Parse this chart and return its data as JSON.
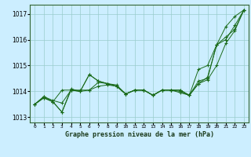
{
  "title": "Graphe pression niveau de la mer (hPa)",
  "background_color": "#cceeff",
  "grid_color": "#99cccc",
  "line_color": "#1a6b1a",
  "xlim": [
    -0.5,
    23.5
  ],
  "ylim": [
    1012.8,
    1017.35
  ],
  "yticks": [
    1013,
    1014,
    1015,
    1016,
    1017
  ],
  "xtick_labels": [
    "0",
    "1",
    "2",
    "3",
    "4",
    "5",
    "6",
    "7",
    "8",
    "9",
    "10",
    "11",
    "12",
    "13",
    "14",
    "15",
    "16",
    "17",
    "18",
    "19",
    "20",
    "21",
    "22",
    "23"
  ],
  "series": [
    {
      "x": [
        0,
        1,
        2,
        3,
        4,
        5,
        6,
        7,
        8,
        9,
        10,
        11,
        12,
        13,
        14,
        15,
        16,
        17,
        18,
        19,
        20,
        21,
        22,
        23
      ],
      "y": [
        1013.5,
        1013.8,
        1013.6,
        1013.2,
        1014.1,
        1014.0,
        1014.65,
        1014.4,
        1014.3,
        1014.2,
        1013.9,
        1014.05,
        1014.05,
        1013.85,
        1014.05,
        1014.05,
        1014.0,
        1013.85,
        1014.85,
        1015.0,
        1015.8,
        1016.5,
        1016.9,
        1017.15
      ]
    },
    {
      "x": [
        0,
        1,
        2,
        3,
        4,
        5,
        6,
        7,
        8,
        9,
        10,
        11,
        12,
        13,
        14,
        15,
        16,
        17,
        18,
        19,
        20,
        21,
        22,
        23
      ],
      "y": [
        1013.5,
        1013.8,
        1013.65,
        1013.55,
        1014.05,
        1014.0,
        1014.05,
        1014.2,
        1014.25,
        1014.2,
        1013.9,
        1014.05,
        1014.05,
        1013.85,
        1014.05,
        1014.05,
        1014.05,
        1013.85,
        1014.4,
        1014.5,
        1015.8,
        1016.0,
        1016.55,
        1017.15
      ]
    },
    {
      "x": [
        0,
        1,
        2,
        3,
        4,
        5,
        6,
        7,
        8,
        9,
        10,
        11,
        12,
        13,
        14,
        15,
        16,
        17,
        18,
        19,
        20,
        21,
        22,
        23
      ],
      "y": [
        1013.5,
        1013.75,
        1013.6,
        1014.05,
        1014.05,
        1014.05,
        1014.05,
        1014.35,
        1014.3,
        1014.25,
        1013.9,
        1014.05,
        1014.05,
        1013.85,
        1014.05,
        1014.05,
        1014.05,
        1013.85,
        1014.3,
        1014.45,
        1015.0,
        1015.85,
        1016.35,
        1017.15
      ]
    },
    {
      "x": [
        0,
        1,
        2,
        3,
        4,
        5,
        6,
        7,
        8,
        9,
        10,
        11,
        12,
        13,
        14,
        15,
        16,
        17,
        18,
        19,
        20,
        21,
        22,
        23
      ],
      "y": [
        1013.5,
        1013.75,
        1013.6,
        1013.2,
        1014.05,
        1014.0,
        1014.65,
        1014.4,
        1014.3,
        1014.2,
        1013.9,
        1014.05,
        1014.05,
        1013.85,
        1014.05,
        1014.05,
        1013.95,
        1013.85,
        1014.3,
        1014.55,
        1015.8,
        1016.1,
        1016.4,
        1017.15
      ]
    }
  ],
  "figsize": [
    3.2,
    2.0
  ],
  "dpi": 100
}
